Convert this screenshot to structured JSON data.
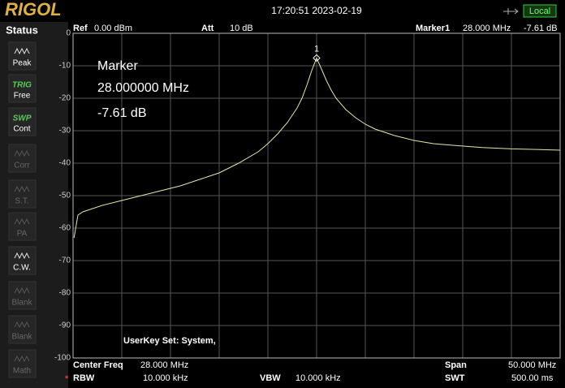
{
  "header": {
    "logo": "RIGOL",
    "datetime": "17:20:51 2023-02-19",
    "mode": "Local"
  },
  "status": {
    "title": "Status",
    "items": [
      {
        "label": "Peak",
        "enabled": true
      },
      {
        "icon_text": "TRIG",
        "label": "Free",
        "enabled": true
      },
      {
        "icon_text": "SWP",
        "label": "Cont",
        "enabled": true
      },
      {
        "label": "Corr",
        "enabled": false
      },
      {
        "label": "S.T.",
        "enabled": false
      },
      {
        "label": "PA",
        "enabled": false
      },
      {
        "label": "C.W.",
        "enabled": true
      },
      {
        "label": "Blank",
        "enabled": false
      },
      {
        "label": "Blank",
        "enabled": false
      },
      {
        "label": "Math",
        "enabled": false
      }
    ]
  },
  "settings": {
    "ref_label": "Ref",
    "ref_value": "0.00 dBm",
    "att_label": "Att",
    "att_value": "10 dB",
    "marker_label": "Marker1",
    "marker_freq": "28.000 MHz",
    "marker_level": "-7.61 dB"
  },
  "marker_box": {
    "title": "Marker",
    "freq": "28.000000 MHz",
    "level": "-7.61 dB"
  },
  "userkey": "UserKey Set:   System,",
  "footer": {
    "center_label": "Center Freq",
    "center_value": "28.000 MHz",
    "span_label": "Span",
    "span_value": "50.000 MHz",
    "rbw_flag": "*",
    "rbw_label": "RBW",
    "rbw_value": "10.000 kHz",
    "vbw_label": "VBW",
    "vbw_value": "10.000 kHz",
    "swt_label": "SWT",
    "swt_value": "500.00 ms"
  },
  "chart_data": {
    "type": "line",
    "x": [
      3.1,
      3.5,
      4,
      5,
      6,
      8,
      10,
      12,
      14,
      16,
      18,
      20,
      22,
      23,
      24,
      25,
      26,
      26.5,
      27,
      27.5,
      28,
      28.5,
      29,
      29.5,
      30,
      31,
      32,
      33,
      34,
      35,
      36,
      38,
      40,
      42,
      45,
      48,
      51,
      53
    ],
    "series": [
      {
        "color": "#e6e6a8",
        "values": [
          -63,
          -56,
          -55,
          -54,
          -53,
          -51.5,
          -50,
          -48.5,
          -47,
          -45,
          -43,
          -40,
          -36.5,
          -34,
          -31,
          -27.5,
          -23,
          -20,
          -16,
          -11.5,
          -7.61,
          -11,
          -14.5,
          -17.5,
          -20,
          -23.5,
          -26,
          -28,
          -29.5,
          -30.5,
          -31.5,
          -33,
          -34,
          -34.5,
          -35.2,
          -35.6,
          -35.8,
          -36
        ]
      }
    ],
    "marker": {
      "x": 28,
      "y": -7.61,
      "label": "1"
    },
    "xlim": [
      3,
      53
    ],
    "ylim": [
      -100,
      0
    ],
    "yticks": [
      0,
      -10,
      -20,
      -30,
      -40,
      -50,
      -60,
      -70,
      -80,
      -90,
      -100
    ],
    "grid": true
  }
}
